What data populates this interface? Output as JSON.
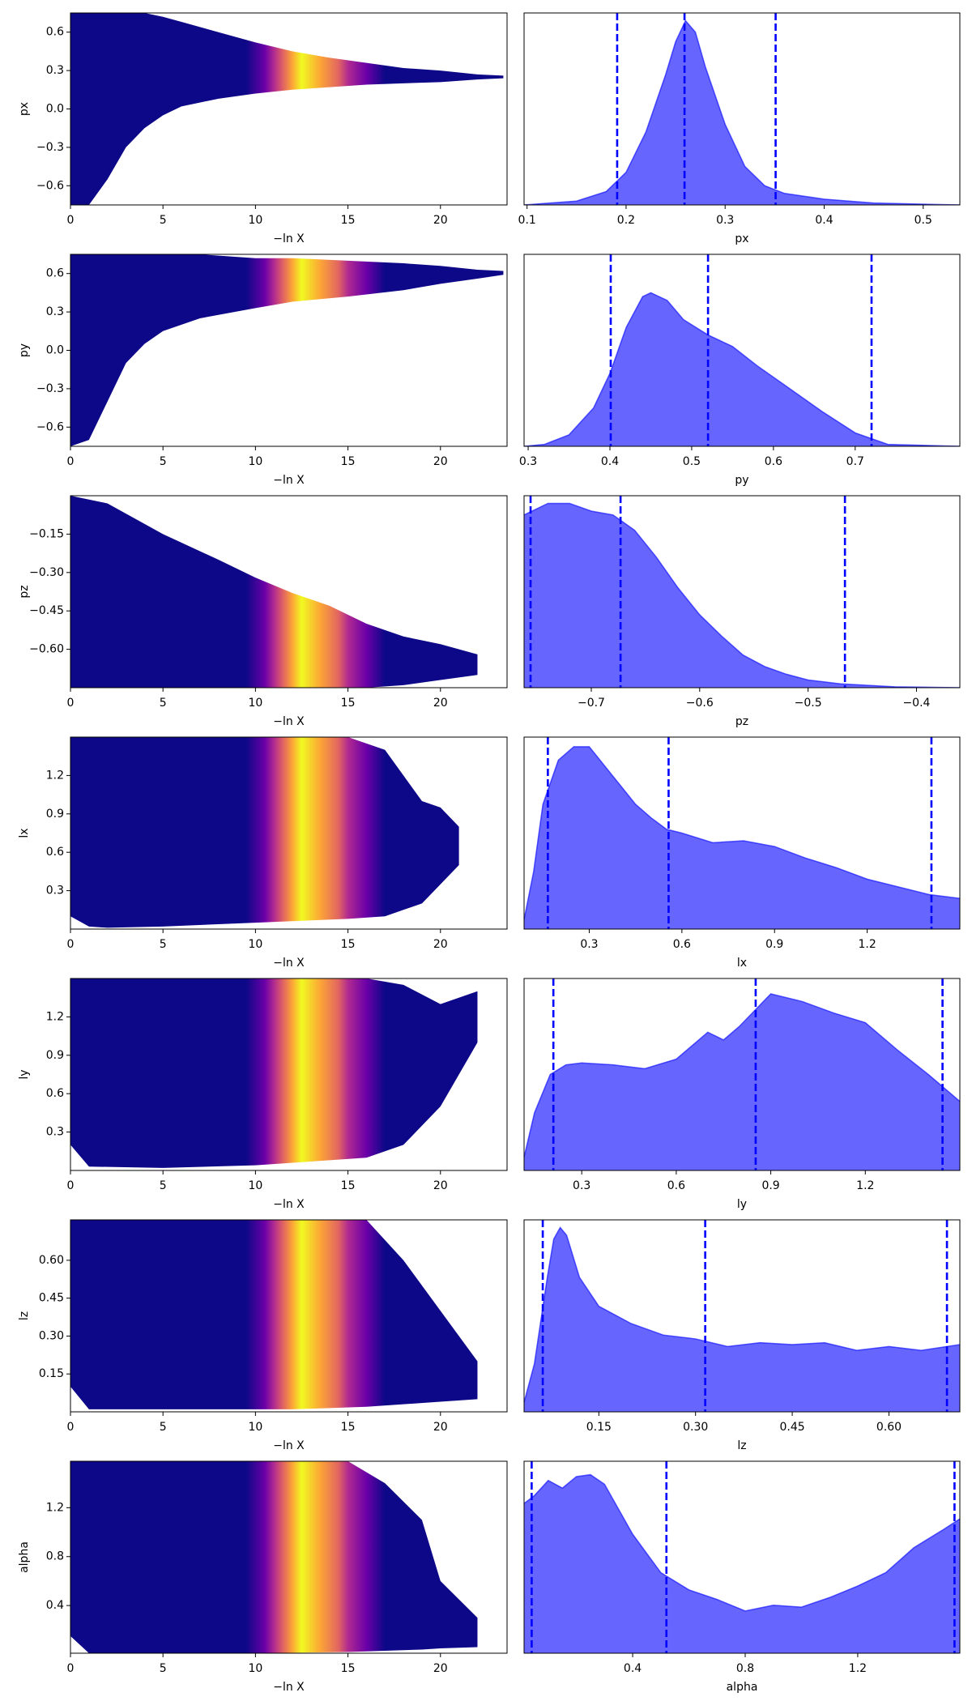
{
  "chart_data": [
    {
      "type": "band",
      "ylabel": "px",
      "xlabel": "−ln X",
      "xlim": [
        0,
        23.6
      ],
      "ylim": [
        -0.75,
        0.75
      ],
      "xticks": [
        0,
        5,
        10,
        15,
        20
      ],
      "yticks": [
        {
          "value": -0.6,
          "label": "−0.6"
        },
        {
          "value": -0.3,
          "label": "−0.3"
        },
        {
          "value": 0,
          "label": "0.0"
        },
        0.3,
        0.6
      ],
      "x": [
        0,
        1,
        2,
        3,
        4,
        5,
        6,
        8,
        10,
        12,
        14,
        16,
        18,
        20,
        22,
        23.4
      ],
      "upper": [
        0.75,
        0.75,
        0.75,
        0.75,
        0.75,
        0.72,
        0.68,
        0.6,
        0.52,
        0.45,
        0.4,
        0.36,
        0.32,
        0.3,
        0.27,
        0.26
      ],
      "lower": [
        -0.75,
        -0.75,
        -0.55,
        -0.3,
        -0.15,
        -0.05,
        0.02,
        0.08,
        0.12,
        0.15,
        0.17,
        0.19,
        0.2,
        0.21,
        0.23,
        0.24
      ],
      "color_stops": [
        {
          "x": 9.5,
          "color": "#0d0887"
        },
        {
          "x": 10.5,
          "color": "#6a00a8"
        },
        {
          "x": 11,
          "color": "#b12a90"
        },
        {
          "x": 11.5,
          "color": "#e16462"
        },
        {
          "x": 12,
          "color": "#fca636"
        },
        {
          "x": 12.5,
          "color": "#f0f921"
        },
        {
          "x": 13.5,
          "color": "#fca636"
        },
        {
          "x": 14.5,
          "color": "#e16462"
        },
        {
          "x": 15,
          "color": "#b12a90"
        },
        {
          "x": 16,
          "color": "#6a00a8"
        },
        {
          "x": 17,
          "color": "#0d0887"
        }
      ]
    },
    {
      "type": "density",
      "xlabel": "px",
      "xlim": [
        0.097,
        0.537
      ],
      "ylim": [
        0,
        1
      ],
      "xticks": [
        0.1,
        0.2,
        0.3,
        0.4,
        0.5
      ],
      "color": "#0000ff",
      "x": [
        0.097,
        0.15,
        0.18,
        0.2,
        0.22,
        0.24,
        0.25,
        0.26,
        0.27,
        0.28,
        0.3,
        0.32,
        0.34,
        0.36,
        0.4,
        0.45,
        0.537
      ],
      "values": [
        0,
        0.02,
        0.07,
        0.17,
        0.38,
        0.68,
        0.85,
        0.96,
        0.9,
        0.72,
        0.42,
        0.2,
        0.1,
        0.06,
        0.03,
        0.01,
        0
      ],
      "vlines": [
        0.191,
        0.259,
        0.351
      ]
    },
    {
      "type": "band",
      "ylabel": "py",
      "xlabel": "−ln X",
      "xlim": [
        0,
        23.6
      ],
      "ylim": [
        -0.75,
        0.75
      ],
      "xticks": [
        0,
        5,
        10,
        15,
        20
      ],
      "yticks": [
        {
          "value": -0.6,
          "label": "−0.6"
        },
        {
          "value": -0.3,
          "label": "−0.3"
        },
        {
          "value": 0,
          "label": "0.0"
        },
        0.3,
        0.6
      ],
      "x": [
        0,
        1,
        2,
        3,
        4,
        5,
        7,
        10,
        12,
        15,
        18,
        20,
        22,
        23.4
      ],
      "upper": [
        0.75,
        0.75,
        0.75,
        0.75,
        0.75,
        0.75,
        0.75,
        0.72,
        0.72,
        0.7,
        0.68,
        0.66,
        0.63,
        0.62
      ],
      "lower": [
        -0.75,
        -0.7,
        -0.4,
        -0.1,
        0.05,
        0.15,
        0.25,
        0.33,
        0.38,
        0.42,
        0.47,
        0.52,
        0.56,
        0.59
      ],
      "color_stops": [
        {
          "x": 9.5,
          "color": "#0d0887"
        },
        {
          "x": 10.5,
          "color": "#6a00a8"
        },
        {
          "x": 11,
          "color": "#b12a90"
        },
        {
          "x": 11.5,
          "color": "#e16462"
        },
        {
          "x": 12,
          "color": "#fca636"
        },
        {
          "x": 12.5,
          "color": "#f0f921"
        },
        {
          "x": 13.5,
          "color": "#fca636"
        },
        {
          "x": 14.5,
          "color": "#e16462"
        },
        {
          "x": 15,
          "color": "#b12a90"
        },
        {
          "x": 16,
          "color": "#6a00a8"
        },
        {
          "x": 17,
          "color": "#0d0887"
        }
      ]
    },
    {
      "type": "density",
      "xlabel": "py",
      "xlim": [
        0.295,
        0.828
      ],
      "ylim": [
        0,
        1
      ],
      "xticks": [
        0.3,
        0.4,
        0.5,
        0.6,
        0.7
      ],
      "color": "#0000ff",
      "x": [
        0.295,
        0.32,
        0.35,
        0.38,
        0.4,
        0.42,
        0.44,
        0.45,
        0.47,
        0.49,
        0.52,
        0.55,
        0.58,
        0.62,
        0.66,
        0.7,
        0.74,
        0.828
      ],
      "values": [
        0,
        0.01,
        0.06,
        0.2,
        0.38,
        0.62,
        0.78,
        0.8,
        0.76,
        0.66,
        0.58,
        0.52,
        0.42,
        0.3,
        0.18,
        0.07,
        0.01,
        0
      ],
      "vlines": [
        0.401,
        0.52,
        0.72
      ]
    },
    {
      "type": "band",
      "ylabel": "pz",
      "xlabel": "−ln X",
      "xlim": [
        0,
        23.6
      ],
      "ylim": [
        -0.75,
        0
      ],
      "xticks": [
        0,
        5,
        10,
        15,
        20
      ],
      "yticks": [
        {
          "value": -0.6,
          "label": "−0.60"
        },
        {
          "value": -0.45,
          "label": "−0.45"
        },
        {
          "value": -0.3,
          "label": "−0.30"
        },
        {
          "value": -0.15,
          "label": "−0.15"
        }
      ],
      "x": [
        0,
        2,
        5,
        8,
        10,
        12,
        14,
        16,
        18,
        20,
        22
      ],
      "upper": [
        0,
        -0.03,
        -0.15,
        -0.25,
        -0.32,
        -0.38,
        -0.43,
        -0.5,
        -0.55,
        -0.58,
        -0.62
      ],
      "lower": [
        -0.75,
        -0.75,
        -0.75,
        -0.75,
        -0.75,
        -0.75,
        -0.75,
        -0.75,
        -0.74,
        -0.72,
        -0.7
      ],
      "color_stops": [
        {
          "x": 9.5,
          "color": "#0d0887"
        },
        {
          "x": 10.5,
          "color": "#6a00a8"
        },
        {
          "x": 11,
          "color": "#b12a90"
        },
        {
          "x": 11.5,
          "color": "#e16462"
        },
        {
          "x": 12,
          "color": "#fca636"
        },
        {
          "x": 12.5,
          "color": "#f0f921"
        },
        {
          "x": 13.5,
          "color": "#fca636"
        },
        {
          "x": 14.5,
          "color": "#e16462"
        },
        {
          "x": 15,
          "color": "#b12a90"
        },
        {
          "x": 16,
          "color": "#6a00a8"
        },
        {
          "x": 17,
          "color": "#0d0887"
        }
      ]
    },
    {
      "type": "density",
      "xlabel": "pz",
      "xlim": [
        -0.762,
        -0.36
      ],
      "ylim": [
        0,
        1
      ],
      "color": "#0000ff",
      "xticks": [
        {
          "value": -0.7,
          "label": "−0.7"
        },
        {
          "value": -0.6,
          "label": "−0.6"
        },
        {
          "value": -0.5,
          "label": "−0.5"
        },
        {
          "value": -0.4,
          "label": "−0.4"
        }
      ],
      "x": [
        -0.762,
        -0.74,
        -0.72,
        -0.7,
        -0.68,
        -0.66,
        -0.64,
        -0.62,
        -0.6,
        -0.58,
        -0.56,
        -0.54,
        -0.52,
        -0.5,
        -0.47,
        -0.42,
        -0.36
      ],
      "values": [
        0.9,
        0.96,
        0.96,
        0.92,
        0.9,
        0.82,
        0.68,
        0.52,
        0.38,
        0.27,
        0.17,
        0.11,
        0.07,
        0.04,
        0.02,
        0.005,
        0
      ],
      "vlines": [
        -0.756,
        -0.673,
        -0.466
      ]
    },
    {
      "type": "band",
      "ylabel": "lx",
      "xlabel": "−ln X",
      "xlim": [
        0,
        23.6
      ],
      "ylim": [
        0,
        1.5
      ],
      "xticks": [
        0,
        5,
        10,
        15,
        20
      ],
      "yticks": [
        0.3,
        0.6,
        0.9,
        1.2
      ],
      "x": [
        0,
        1,
        2,
        5,
        10,
        15,
        17,
        18,
        19,
        20,
        21
      ],
      "upper": [
        1.5,
        1.5,
        1.5,
        1.5,
        1.5,
        1.5,
        1.4,
        1.2,
        1.0,
        0.95,
        0.8
      ],
      "lower": [
        0.1,
        0.02,
        0.01,
        0.02,
        0.05,
        0.08,
        0.1,
        0.15,
        0.2,
        0.35,
        0.5
      ],
      "color_stops": [
        {
          "x": 9.5,
          "color": "#0d0887"
        },
        {
          "x": 10.5,
          "color": "#6a00a8"
        },
        {
          "x": 11,
          "color": "#b12a90"
        },
        {
          "x": 11.5,
          "color": "#e16462"
        },
        {
          "x": 12,
          "color": "#fca636"
        },
        {
          "x": 12.5,
          "color": "#f0f921"
        },
        {
          "x": 13.5,
          "color": "#fca636"
        },
        {
          "x": 14.5,
          "color": "#e16462"
        },
        {
          "x": 15,
          "color": "#b12a90"
        },
        {
          "x": 16,
          "color": "#6a00a8"
        },
        {
          "x": 17,
          "color": "#0d0887"
        }
      ]
    },
    {
      "type": "density",
      "xlabel": "lx",
      "xlim": [
        0.089,
        1.5
      ],
      "ylim": [
        0,
        1
      ],
      "xticks": [
        0.3,
        0.6,
        0.9,
        1.2
      ],
      "color": "#0000ff",
      "x": [
        0.089,
        0.12,
        0.15,
        0.2,
        0.25,
        0.3,
        0.35,
        0.4,
        0.45,
        0.5,
        0.55,
        0.6,
        0.7,
        0.8,
        0.9,
        1.0,
        1.1,
        1.2,
        1.3,
        1.4,
        1.5
      ],
      "values": [
        0.05,
        0.3,
        0.65,
        0.88,
        0.95,
        0.95,
        0.85,
        0.75,
        0.65,
        0.58,
        0.52,
        0.5,
        0.45,
        0.46,
        0.43,
        0.37,
        0.32,
        0.26,
        0.22,
        0.18,
        0.16
      ],
      "vlines": [
        0.166,
        0.557,
        1.408
      ]
    },
    {
      "type": "band",
      "ylabel": "ly",
      "xlabel": "−ln X",
      "xlim": [
        0,
        23.6
      ],
      "ylim": [
        0,
        1.5
      ],
      "xticks": [
        0,
        5,
        10,
        15,
        20
      ],
      "yticks": [
        0.3,
        0.6,
        0.9,
        1.2
      ],
      "x": [
        0,
        1,
        5,
        10,
        16,
        18,
        20,
        22
      ],
      "upper": [
        1.5,
        1.5,
        1.5,
        1.5,
        1.5,
        1.45,
        1.3,
        1.4
      ],
      "lower": [
        0.2,
        0.03,
        0.02,
        0.04,
        0.1,
        0.2,
        0.5,
        1.0
      ],
      "color_stops": [
        {
          "x": 9.5,
          "color": "#0d0887"
        },
        {
          "x": 10.5,
          "color": "#6a00a8"
        },
        {
          "x": 11,
          "color": "#b12a90"
        },
        {
          "x": 11.5,
          "color": "#e16462"
        },
        {
          "x": 12,
          "color": "#fca636"
        },
        {
          "x": 12.5,
          "color": "#f0f921"
        },
        {
          "x": 13.5,
          "color": "#fca636"
        },
        {
          "x": 14.5,
          "color": "#e16462"
        },
        {
          "x": 15,
          "color": "#b12a90"
        },
        {
          "x": 16,
          "color": "#6a00a8"
        },
        {
          "x": 17,
          "color": "#0d0887"
        }
      ]
    },
    {
      "type": "density",
      "xlabel": "ly",
      "xlim": [
        0.117,
        1.5
      ],
      "ylim": [
        0,
        1
      ],
      "xticks": [
        0.3,
        0.6,
        0.9,
        1.2
      ],
      "color": "#0000ff",
      "x": [
        0.117,
        0.15,
        0.2,
        0.25,
        0.3,
        0.4,
        0.5,
        0.6,
        0.7,
        0.75,
        0.8,
        0.9,
        1.0,
        1.1,
        1.2,
        1.3,
        1.4,
        1.5
      ],
      "values": [
        0.07,
        0.3,
        0.5,
        0.55,
        0.56,
        0.55,
        0.53,
        0.58,
        0.72,
        0.68,
        0.75,
        0.92,
        0.88,
        0.82,
        0.77,
        0.63,
        0.5,
        0.36
      ],
      "vlines": [
        0.21,
        0.852,
        1.445
      ]
    },
    {
      "type": "band",
      "ylabel": "lz",
      "xlabel": "−ln X",
      "xlim": [
        0,
        23.6
      ],
      "ylim": [
        0,
        0.76
      ],
      "xticks": [
        0,
        5,
        10,
        15,
        20
      ],
      "yticks": [
        {
          "value": 0.15,
          "label": "0.15"
        },
        {
          "value": 0.3,
          "label": "0.30"
        },
        {
          "value": 0.45,
          "label": "0.45"
        },
        {
          "value": 0.6,
          "label": "0.60"
        }
      ],
      "x": [
        0,
        1,
        5,
        12,
        16,
        18,
        20,
        22
      ],
      "upper": [
        0.76,
        0.76,
        0.76,
        0.76,
        0.76,
        0.6,
        0.4,
        0.2
      ],
      "lower": [
        0.1,
        0.01,
        0.01,
        0.01,
        0.02,
        0.03,
        0.04,
        0.05
      ],
      "color_stops": [
        {
          "x": 9.5,
          "color": "#0d0887"
        },
        {
          "x": 10.5,
          "color": "#6a00a8"
        },
        {
          "x": 11,
          "color": "#b12a90"
        },
        {
          "x": 11.5,
          "color": "#e16462"
        },
        {
          "x": 12,
          "color": "#fca636"
        },
        {
          "x": 12.5,
          "color": "#f0f921"
        },
        {
          "x": 13.5,
          "color": "#fca636"
        },
        {
          "x": 14.5,
          "color": "#e16462"
        },
        {
          "x": 15,
          "color": "#b12a90"
        },
        {
          "x": 16,
          "color": "#6a00a8"
        },
        {
          "x": 17,
          "color": "#0d0887"
        }
      ]
    },
    {
      "type": "density",
      "xlabel": "lz",
      "xlim": [
        0.034,
        0.71
      ],
      "ylim": [
        0,
        1
      ],
      "color": "#0000ff",
      "xticks": [
        {
          "value": 0.15,
          "label": "0.15"
        },
        {
          "value": 0.3,
          "label": "0.30"
        },
        {
          "value": 0.45,
          "label": "0.45"
        },
        {
          "value": 0.6,
          "label": "0.60"
        }
      ],
      "x": [
        0.034,
        0.05,
        0.07,
        0.08,
        0.09,
        0.1,
        0.12,
        0.15,
        0.2,
        0.25,
        0.3,
        0.35,
        0.4,
        0.45,
        0.5,
        0.55,
        0.6,
        0.65,
        0.71
      ],
      "values": [
        0.05,
        0.25,
        0.7,
        0.9,
        0.96,
        0.92,
        0.7,
        0.55,
        0.46,
        0.4,
        0.38,
        0.34,
        0.36,
        0.35,
        0.36,
        0.32,
        0.34,
        0.32,
        0.35
      ],
      "vlines": [
        0.063,
        0.315,
        0.69
      ]
    },
    {
      "type": "band",
      "ylabel": "alpha",
      "xlabel": "−ln X",
      "xlim": [
        0,
        23.6
      ],
      "ylim": [
        0.01,
        1.58
      ],
      "xticks": [
        0,
        5,
        10,
        15,
        20
      ],
      "yticks": [
        0.4,
        0.8,
        1.2
      ],
      "x": [
        0,
        1,
        10,
        15,
        17,
        19,
        20,
        22
      ],
      "upper": [
        1.58,
        1.58,
        1.58,
        1.58,
        1.4,
        1.1,
        0.6,
        0.3
      ],
      "lower": [
        0.15,
        0.01,
        0.01,
        0.02,
        0.03,
        0.04,
        0.05,
        0.06
      ],
      "color_stops": [
        {
          "x": 9.5,
          "color": "#0d0887"
        },
        {
          "x": 10.5,
          "color": "#6a00a8"
        },
        {
          "x": 11,
          "color": "#b12a90"
        },
        {
          "x": 11.5,
          "color": "#e16462"
        },
        {
          "x": 12,
          "color": "#fca636"
        },
        {
          "x": 12.5,
          "color": "#f0f921"
        },
        {
          "x": 13.5,
          "color": "#fca636"
        },
        {
          "x": 14.5,
          "color": "#e16462"
        },
        {
          "x": 15,
          "color": "#b12a90"
        },
        {
          "x": 16,
          "color": "#6a00a8"
        },
        {
          "x": 17,
          "color": "#0d0887"
        }
      ]
    },
    {
      "type": "density",
      "xlabel": "alpha",
      "xlim": [
        0.014,
        1.563
      ],
      "ylim": [
        0,
        1
      ],
      "xticks": [
        0.4,
        0.8,
        1.2
      ],
      "color": "#0000ff",
      "x": [
        0.014,
        0.05,
        0.1,
        0.15,
        0.2,
        0.25,
        0.3,
        0.35,
        0.4,
        0.45,
        0.5,
        0.6,
        0.7,
        0.8,
        0.9,
        1.0,
        1.1,
        1.2,
        1.3,
        1.4,
        1.5,
        1.563
      ],
      "values": [
        0.78,
        0.82,
        0.9,
        0.86,
        0.92,
        0.93,
        0.88,
        0.75,
        0.62,
        0.52,
        0.42,
        0.33,
        0.28,
        0.22,
        0.25,
        0.24,
        0.29,
        0.35,
        0.42,
        0.55,
        0.64,
        0.7
      ],
      "vlines": [
        0.041,
        0.52,
        1.544
      ]
    }
  ]
}
